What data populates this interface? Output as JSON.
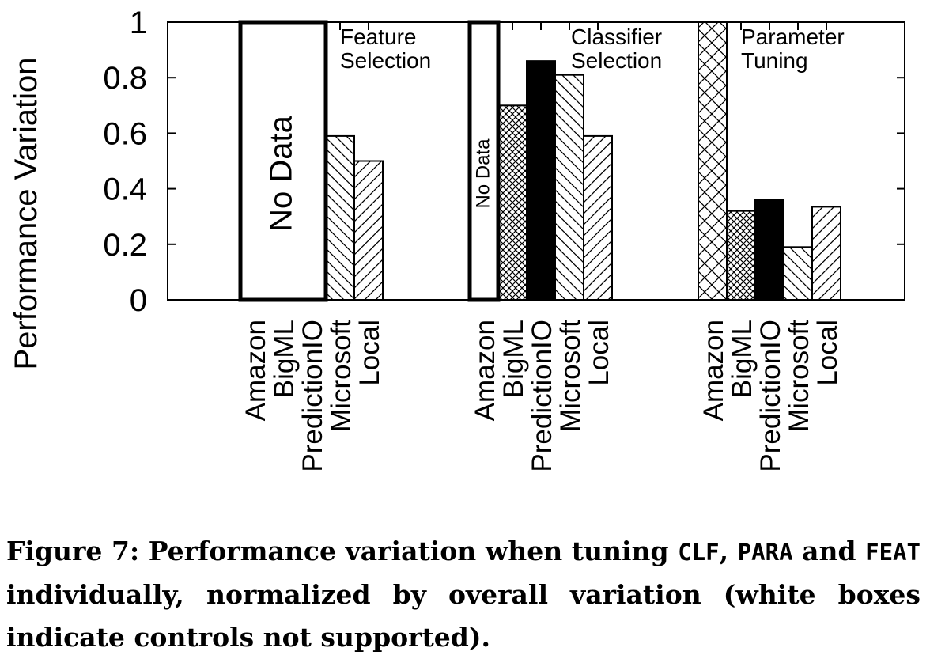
{
  "chart_data": {
    "type": "bar",
    "ylabel": "Performance Variation",
    "ylim": [
      0,
      1
    ],
    "yticks": [
      {
        "value": 0,
        "label": "0"
      },
      {
        "value": 0.2,
        "label": "0.2"
      },
      {
        "value": 0.4,
        "label": "0.4"
      },
      {
        "value": 0.6,
        "label": "0.6"
      },
      {
        "value": 0.8,
        "label": "0.8"
      },
      {
        "value": 1,
        "label": "1"
      }
    ],
    "categories": [
      "Amazon",
      "BigML",
      "PredictionIO",
      "Microsoft",
      "Local"
    ],
    "groups": [
      {
        "title_lines": [
          "Feature",
          "Selection"
        ],
        "values": [
          null,
          null,
          null,
          0.59,
          0.5
        ],
        "no_data_label": "No Data",
        "no_data_span": [
          0,
          2
        ]
      },
      {
        "title_lines": [
          "Classifier",
          "Selection"
        ],
        "values": [
          null,
          0.7,
          0.86,
          0.81,
          0.59
        ],
        "no_data_label": "No Data",
        "no_data_span": [
          0,
          0
        ]
      },
      {
        "title_lines": [
          "Parameter",
          "Tuning"
        ],
        "values": [
          1.0,
          0.32,
          0.36,
          0.19,
          0.335
        ],
        "no_data_label": null,
        "no_data_span": null
      }
    ],
    "patterns": {
      "Amazon": "cross-hatch-large",
      "BigML": "cross-hatch-small",
      "PredictionIO": "solid-black",
      "Microsoft": "diagonal-back",
      "Local": "diagonal-forward"
    },
    "grid": false,
    "legend": "none"
  },
  "caption": {
    "prefix": "Figure 7: Performance variation when tuning ",
    "code1": "CLF",
    "sep1": ", ",
    "code2": "PARA",
    "sep2": " and ",
    "code3": "FEAT",
    "suffix": " individually, normalized by overall variation (white boxes indicate controls not supported)."
  }
}
